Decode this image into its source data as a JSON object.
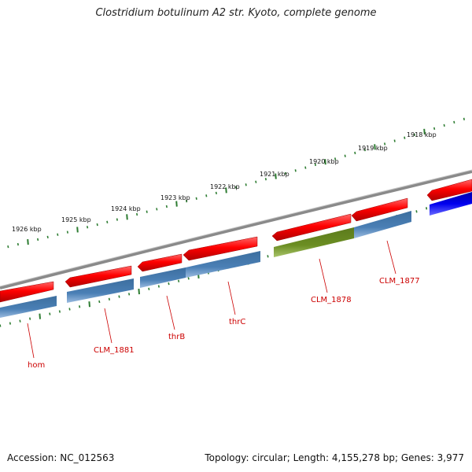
{
  "header": {
    "title": "Clostridium botulinum A2 str. Kyoto, complete genome"
  },
  "footer": {
    "accession": "Accession: NC_012563",
    "summary": "Topology: circular; Length: 4,155,278 bp; Genes: 3,977"
  },
  "kbp_ticks": [
    "1918 kbp",
    "1919 kbp",
    "1920 kbp",
    "1921 kbp",
    "1922 kbp",
    "1923 kbp",
    "1924 kbp",
    "1925 kbp",
    "1926 kbp"
  ],
  "gene_labels": [
    "hom",
    "CLM_1881",
    "thrB",
    "thrC",
    "CLM_1878",
    "CLM_1877"
  ],
  "colors": {
    "cds_forward": "#ff0000",
    "gene_track": "#4a7fb5",
    "highlight": "#6b8e23",
    "other": "#0000ee",
    "label": "#cc0000",
    "tick": "#2e7d32",
    "backbone": "#888888"
  }
}
